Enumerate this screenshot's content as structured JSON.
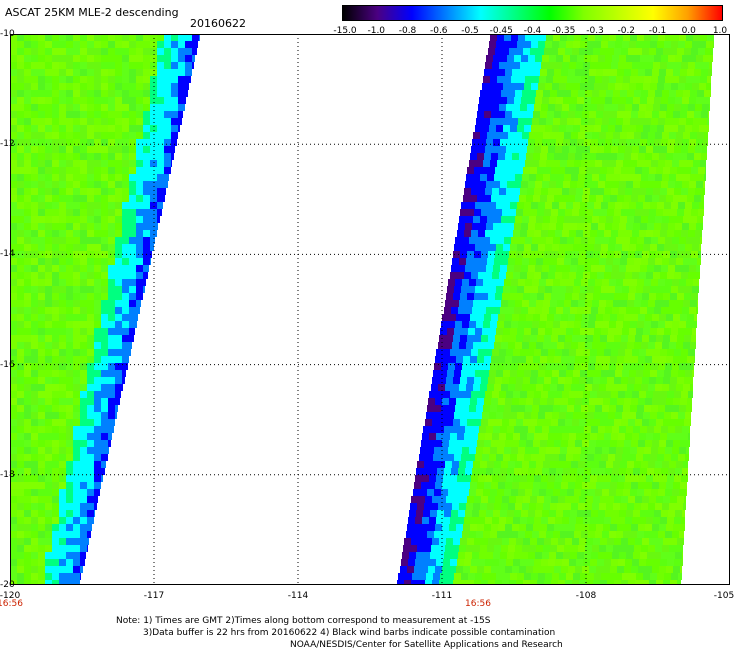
{
  "header": {
    "title": "ASCAT 25KM MLE-2 descending",
    "date": "20160622"
  },
  "colorbar": {
    "labels": [
      "-15.0",
      "-1.0",
      "-0.8",
      "-0.6",
      "-0.5",
      "-0.45",
      "-0.4",
      "-0.35",
      "-0.3",
      "-0.2",
      "-0.1",
      "0.0",
      "1.0"
    ],
    "colors": [
      "#000000",
      "#4b0082",
      "#0000ff",
      "#0080ff",
      "#00ffff",
      "#00ff80",
      "#00ff00",
      "#80ff00",
      "#c0ff00",
      "#ffff00",
      "#ffa000",
      "#ff0000"
    ]
  },
  "axes": {
    "lat_labels": [
      "-10",
      "-12",
      "-14",
      "-16",
      "-18",
      "-20"
    ],
    "lon_labels": [
      "-120",
      "-117",
      "-114",
      "-111",
      "-108",
      "-105"
    ],
    "lat_range": [
      -20,
      -10
    ],
    "lon_range": [
      -120,
      -105
    ],
    "grid": true
  },
  "swath_times": [
    "16:56",
    "16:56"
  ],
  "notes": {
    "line1": "Note: 1) Times are GMT 2)Times along bottom correspond to measurement at -15S",
    "line2": "3)Data buffer is 22 hrs from 20160622 4) Black wind barbs indicate possible contamination",
    "line3": "NOAA/NESDIS/Center for Satellite Applications and Research"
  }
}
